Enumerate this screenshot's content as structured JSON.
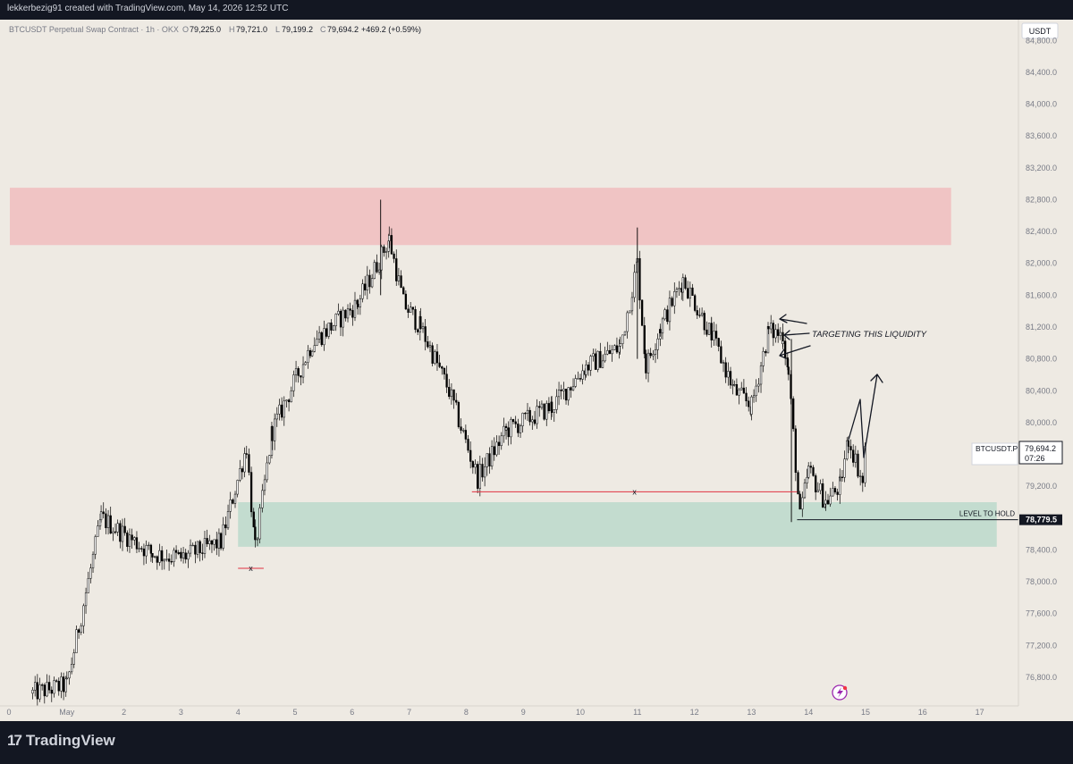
{
  "header": {
    "caption": "lekkerbezig91 created with TradingView.com, May 14, 2026 12:52 UTC"
  },
  "legend": {
    "symbol": "BTCUSDT Perpetual Swap Contract · 1h · OKX",
    "o_label": "O",
    "o_value": "79,225.0",
    "h_label": "H",
    "h_value": "79,721.0",
    "l_label": "L",
    "l_value": "79,199.2",
    "c_label": "C",
    "c_value": "79,694.2",
    "change": "+469.2 (+0.59%)"
  },
  "currency_badge": "USDT",
  "price_axis": {
    "ticks": [
      "84,800.0",
      "84,400.0",
      "84,000.0",
      "83,600.0",
      "83,200.0",
      "82,800.0",
      "82,400.0",
      "82,000.0",
      "81,600.0",
      "81,200.0",
      "80,800.0",
      "80,400.0",
      "80,000.0",
      "79,200.0",
      "78,400.0",
      "78,000.0",
      "77,600.0",
      "77,200.0",
      "76,800.0"
    ]
  },
  "time_axis": {
    "ticks": [
      "0",
      "May",
      "2",
      "3",
      "4",
      "5",
      "6",
      "7",
      "8",
      "9",
      "10",
      "11",
      "12",
      "13",
      "14",
      "15",
      "16",
      "17"
    ]
  },
  "last_price": {
    "symbol": "BTCUSDT.P",
    "price": "79,694.2",
    "countdown": "07:26"
  },
  "level": {
    "label": "LEVEL TO HOLD",
    "price": "78,779.5"
  },
  "annotation": {
    "text": "TARGETING THIS LIQUIDITY",
    "marker_x": "x"
  },
  "brand": {
    "logo": "17",
    "name": "TradingView"
  },
  "colors": {
    "background": "#eeeae3",
    "supply_zone": "#f0c4c4",
    "demand_zone": "#c3dccf",
    "candle": "#000000",
    "liquidity_line": "#e03040"
  },
  "chart_data": {
    "type": "candlestick",
    "title": "BTCUSDT Perpetual Swap Contract · 1h · OKX",
    "ylim": [
      76500,
      85000
    ],
    "x_range_days": [
      0,
      17.5
    ],
    "anchors": [
      [
        0.4,
        76600
      ],
      [
        1.0,
        76700
      ],
      [
        1.6,
        78800
      ],
      [
        2.5,
        78350
      ],
      [
        3.0,
        78300
      ],
      [
        3.7,
        78500
      ],
      [
        4.15,
        79700
      ],
      [
        4.3,
        78400
      ],
      [
        4.6,
        79900
      ],
      [
        5.3,
        81000
      ],
      [
        6.1,
        81500
      ],
      [
        6.65,
        82300
      ],
      [
        6.9,
        81500
      ],
      [
        7.2,
        81200
      ],
      [
        7.7,
        80400
      ],
      [
        8.2,
        79300
      ],
      [
        8.7,
        79900
      ],
      [
        9.5,
        80200
      ],
      [
        10.1,
        80700
      ],
      [
        10.7,
        80950
      ],
      [
        11.0,
        82000
      ],
      [
        11.15,
        80700
      ],
      [
        11.4,
        81200
      ],
      [
        11.8,
        81800
      ],
      [
        12.3,
        81100
      ],
      [
        12.7,
        80400
      ],
      [
        13.0,
        80200
      ],
      [
        13.3,
        81150
      ],
      [
        13.55,
        81100
      ],
      [
        13.65,
        80600
      ],
      [
        13.85,
        78800
      ],
      [
        14.0,
        79400
      ],
      [
        14.3,
        79000
      ],
      [
        14.55,
        79200
      ],
      [
        14.7,
        79800
      ],
      [
        14.95,
        79250
      ],
      [
        15.0,
        79700
      ]
    ],
    "supply_zone": {
      "day_start": 0,
      "day_end": 16.5,
      "price_top": 82950,
      "price_bottom": 82230
    },
    "demand_zone": {
      "day_start": 4.0,
      "day_end": 17.3,
      "price_top": 79000,
      "price_bottom": 78440
    },
    "level_to_hold": 78779.5,
    "liquidity_low_1": {
      "day_start": 4.0,
      "day_end": 4.45,
      "price": 78170
    },
    "liquidity_low_2": {
      "day_start": 8.1,
      "day_end": 13.8,
      "price": 79130
    }
  }
}
